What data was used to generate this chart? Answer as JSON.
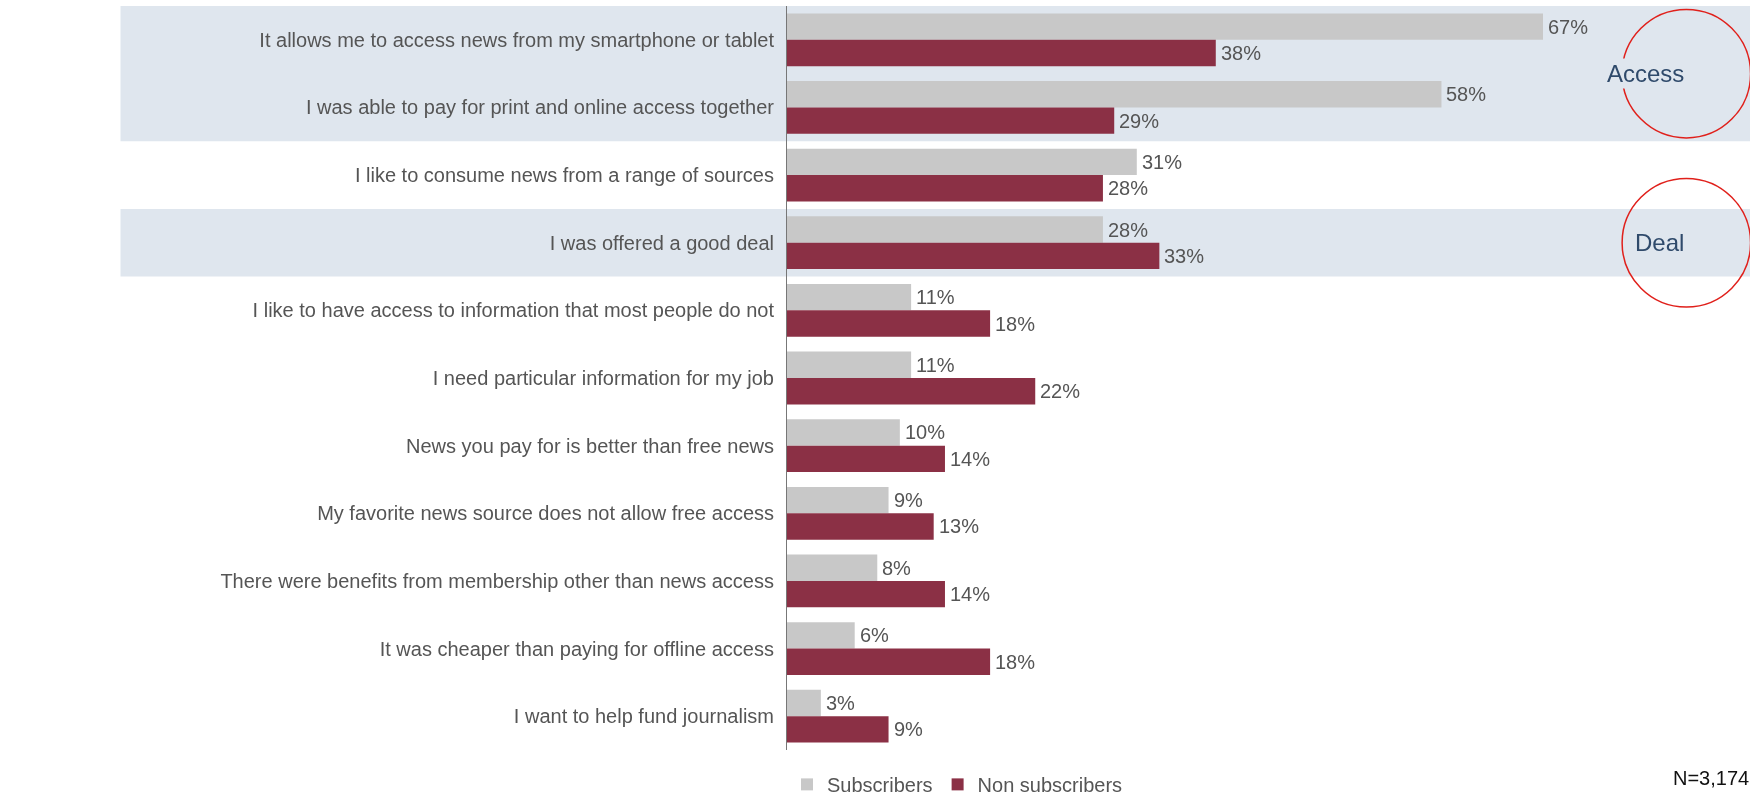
{
  "chart_data": {
    "type": "bar",
    "orientation": "horizontal",
    "categories": [
      "It allows me to access news from my smartphone or tablet",
      "I was able to pay for print and online access together",
      "I like to consume news from a range of sources",
      "I was offered a good deal",
      "I like to have access to information that most people do not",
      "I need particular information for my job",
      "News you pay for is better than free news",
      "My favorite news source does not allow free access",
      "There were benefits from membership other than news access",
      "It was cheaper than paying for offline access",
      "I want to help fund journalism"
    ],
    "series": [
      {
        "name": "Subscribers",
        "color": "#c8c8c8",
        "values": [
          67,
          58,
          31,
          28,
          11,
          11,
          10,
          9,
          8,
          6,
          3
        ],
        "value_labels": [
          "67%",
          "58%",
          "31%",
          "28%",
          "11%",
          "11%",
          "10%",
          "9%",
          "8%",
          "6%",
          "3%"
        ]
      },
      {
        "name": "Non subscribers",
        "color": "#8b3045",
        "values": [
          38,
          29,
          28,
          33,
          18,
          22,
          14,
          13,
          14,
          18,
          9
        ],
        "value_labels": [
          "38%",
          "29%",
          "28%",
          "33%",
          "18%",
          "22%",
          "14%",
          "13%",
          "14%",
          "18%",
          "9%"
        ]
      }
    ],
    "tick_labels": "y",
    "grid": false,
    "legend": "bottom",
    "bands": [
      {
        "axis": "y",
        "from": "It allows me to access news from my smartphone or tablet",
        "to": "I was able to pay for print and online access together",
        "label": "Access",
        "color": "#dfe6ee"
      },
      {
        "axis": "y",
        "from": "I was offered a good deal",
        "to": "I was offered a good deal",
        "label": "Deal",
        "color": "#dfe6ee"
      }
    ],
    "annotations": [
      "N=3,174"
    ]
  }
}
